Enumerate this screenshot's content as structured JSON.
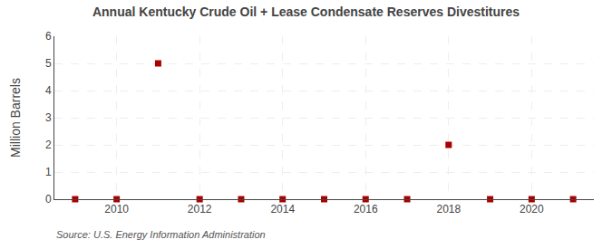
{
  "chart_data": {
    "type": "scatter",
    "title": "Annual Kentucky Crude Oil + Lease Condensate Reserves Divestitures",
    "ylabel": "Million Barrels",
    "annotations": [
      "Source: U.S. Energy Information Administration"
    ],
    "x": [
      2009,
      2010,
      2011,
      2012,
      2013,
      2014,
      2015,
      2016,
      2017,
      2018,
      2019,
      2020,
      2021
    ],
    "values": [
      0.0,
      0.0,
      5.0,
      0.0,
      0.0,
      0.0,
      0.0,
      0.0,
      0.0,
      2.0,
      0.0,
      0.0,
      0.0
    ],
    "color": "#aa0000",
    "marker": "square",
    "xlim": [
      2008.5,
      2021.5
    ],
    "ylim": [
      0,
      6
    ],
    "xticks": [
      2010,
      2012,
      2014,
      2016,
      2018,
      2020
    ],
    "yticks": [
      0,
      1,
      2,
      3,
      4,
      5,
      6
    ],
    "grid": true
  }
}
